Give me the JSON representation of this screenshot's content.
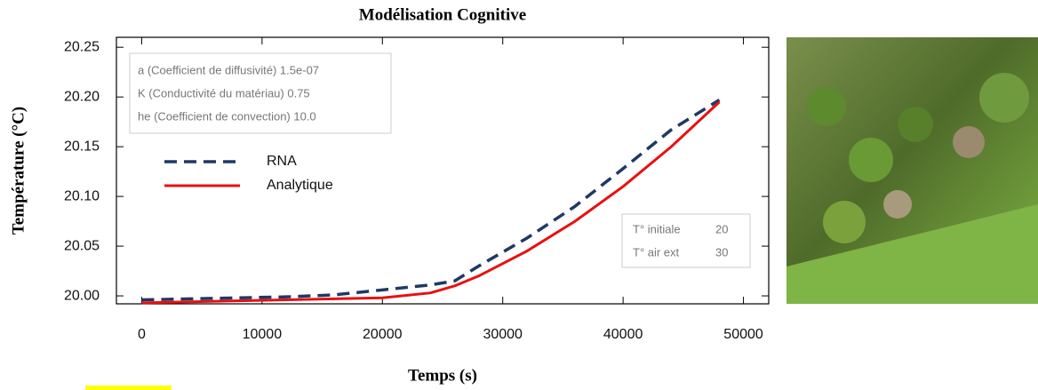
{
  "chart_data": {
    "type": "line",
    "title": "Modélisation Cognitive",
    "xlabel": "Temps (s)",
    "ylabel": "Température (°C)",
    "x": [
      0,
      4000,
      8000,
      12000,
      16000,
      20000,
      24000,
      26000,
      28000,
      32000,
      36000,
      40000,
      44000,
      48000
    ],
    "series": [
      {
        "name": "RNA",
        "color": "#1f3864",
        "dash": true,
        "values": [
          19.996,
          19.997,
          19.998,
          19.999,
          20.001,
          20.006,
          20.011,
          20.015,
          20.03,
          20.058,
          20.09,
          20.128,
          20.167,
          20.197
        ]
      },
      {
        "name": "Analytique",
        "color": "#e81010",
        "dash": false,
        "values": [
          19.993,
          19.994,
          19.995,
          19.996,
          19.997,
          19.998,
          20.003,
          20.01,
          20.02,
          20.045,
          20.075,
          20.11,
          20.15,
          20.195
        ]
      }
    ],
    "xlim": [
      -2100,
      52100
    ],
    "ylim": [
      19.992,
      20.26
    ],
    "xticks": [
      0,
      10000,
      20000,
      30000,
      40000,
      50000
    ],
    "yticks": [
      {
        "value": 20.0,
        "label": "20.00"
      },
      {
        "value": 20.05,
        "label": "20.05"
      },
      {
        "value": 20.1,
        "label": "20.10"
      },
      {
        "value": 20.15,
        "label": "20.15"
      },
      {
        "value": 20.2,
        "label": "20.20"
      },
      {
        "value": 20.25,
        "label": "20.25"
      }
    ],
    "parameters": [
      "a (Coefficient de diffusivité)  1.5e-07",
      "K (Conductivité du matériau)  0.75",
      "he (Coefficient de convection)  10.0"
    ],
    "conditions": [
      [
        "T° initiale",
        "20"
      ],
      [
        "T° air ext",
        "30"
      ]
    ]
  }
}
